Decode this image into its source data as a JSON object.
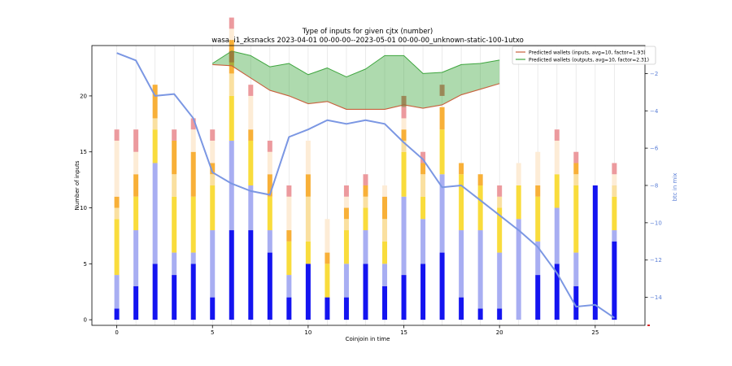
{
  "chart_data": {
    "type": "bar",
    "title_line1": "Type of inputs for given cjtx (number)",
    "title_line2": "wasabi1_zksnacks 2023-04-01 00-00-00--2023-05-01 00-00-00_unknown-static-100-1utxo",
    "xlabel": "Coinjoin in time",
    "ylabel": "Number of inputs",
    "y2label": "btc in mix",
    "xlim": [
      -1.3,
      27.6
    ],
    "ylim": [
      -0.5,
      24.5
    ],
    "y2lim": [
      -15.5,
      -0.5
    ],
    "xticks": [
      0,
      5,
      10,
      15,
      20,
      25
    ],
    "yticks": [
      0,
      5,
      10,
      15,
      20
    ],
    "y2ticks": [
      -14,
      -12,
      -10,
      -8,
      -6,
      -4,
      -2
    ],
    "grid": "vertical",
    "legend_position": "top-right",
    "legend": [
      {
        "label": "Predicted wallets (inputs, avg=10, factor=1.93)",
        "color": "#c8603c"
      },
      {
        "label": "Predicted wallets (outputs, avg=10, factor=2.31)",
        "color": "#3fa63f"
      }
    ],
    "stack_colors": [
      "#1414f0",
      "#a8aef2",
      "#f9dc3c",
      "#fae0a0",
      "#f8b038",
      "#fdecd6",
      "#ec9a9e"
    ],
    "stacks": [
      [
        1,
        3,
        5,
        1,
        1,
        5,
        1
      ],
      [
        3,
        5,
        3,
        0,
        2,
        2,
        2
      ],
      [
        5,
        9,
        3,
        1,
        3,
        0,
        0
      ],
      [
        4,
        2,
        5,
        2,
        3,
        0,
        1
      ],
      [
        5,
        1,
        5,
        0,
        4,
        2,
        1
      ],
      [
        2,
        6,
        4,
        1,
        1,
        2,
        1
      ],
      [
        8,
        8,
        4,
        2,
        3,
        1,
        1
      ],
      [
        8,
        4,
        4,
        0,
        1,
        3,
        1
      ],
      [
        6,
        2,
        3,
        0,
        2,
        2,
        1
      ],
      [
        2,
        2,
        3,
        0,
        1,
        3,
        1
      ],
      [
        5,
        0,
        2,
        4,
        2,
        3,
        0
      ],
      [
        2,
        0,
        3,
        0,
        1,
        3,
        0
      ],
      [
        2,
        3,
        3,
        1,
        1,
        1,
        1
      ],
      [
        5,
        3,
        2,
        1,
        1,
        0,
        1
      ],
      [
        3,
        2,
        2,
        2,
        2,
        1,
        0
      ],
      [
        4,
        7,
        4,
        1,
        1,
        1,
        1
      ],
      [
        5,
        4,
        2,
        2,
        1,
        0,
        1
      ],
      [
        6,
        7,
        4,
        0,
        2,
        0,
        0
      ],
      [
        2,
        6,
        5,
        0,
        1,
        0,
        0
      ],
      [
        1,
        7,
        4,
        0,
        1,
        0,
        0
      ],
      [
        1,
        5,
        4,
        1,
        0,
        0,
        1
      ],
      [
        0,
        9,
        3,
        0,
        0,
        2,
        0
      ],
      [
        4,
        3,
        4,
        0,
        1,
        3,
        0
      ],
      [
        5,
        5,
        3,
        0,
        0,
        3,
        1
      ],
      [
        3,
        3,
        6,
        1,
        1,
        0,
        1
      ],
      [
        12,
        0,
        0,
        0,
        0,
        0,
        0
      ],
      [
        7,
        1,
        3,
        1,
        0,
        1,
        1
      ]
    ],
    "btc_in_mix": {
      "x": [
        0,
        1,
        2,
        3,
        4,
        5,
        6,
        7,
        8,
        9,
        10,
        11,
        12,
        13,
        14,
        15,
        16,
        17,
        18,
        19,
        20,
        21,
        22,
        23,
        24,
        25,
        26
      ],
      "y": [
        -0.9,
        -1.3,
        -3.2,
        -3.1,
        -4.4,
        -7.3,
        -7.9,
        -8.3,
        -8.5,
        -5.4,
        -5.0,
        -4.5,
        -4.7,
        -4.5,
        -4.7,
        -5.7,
        -6.6,
        -8.1,
        -8.0,
        -8.8,
        -9.6,
        -10.4,
        -11.3,
        -12.7,
        -14.5,
        -14.4,
        -15.1
      ]
    },
    "predicted_wallets_inputs": {
      "x": [
        5,
        6,
        7,
        8,
        9,
        10,
        11,
        12,
        13,
        14,
        15,
        16,
        17,
        18,
        19,
        20
      ],
      "y": [
        22.8,
        22.7,
        21.6,
        20.5,
        20.0,
        19.3,
        19.5,
        18.8,
        18.8,
        18.8,
        19.2,
        18.9,
        19.2,
        20.1,
        20.6,
        21.1
      ]
    },
    "predicted_wallets_outputs": {
      "x": [
        5,
        6,
        7,
        8,
        9,
        10,
        11,
        12,
        13,
        14,
        15,
        16,
        17,
        18,
        19,
        20
      ],
      "y": [
        22.9,
        24.0,
        23.6,
        22.6,
        22.9,
        21.9,
        22.5,
        21.7,
        22.4,
        23.6,
        23.6,
        22.0,
        22.1,
        22.8,
        22.9,
        23.2
      ]
    },
    "brown_overlay_marks": [
      {
        "x": 6,
        "y0": 23,
        "y1": 24
      },
      {
        "x": 15,
        "y0": 19,
        "y1": 20
      },
      {
        "x": 17,
        "y0": 20,
        "y1": 21
      }
    ]
  }
}
